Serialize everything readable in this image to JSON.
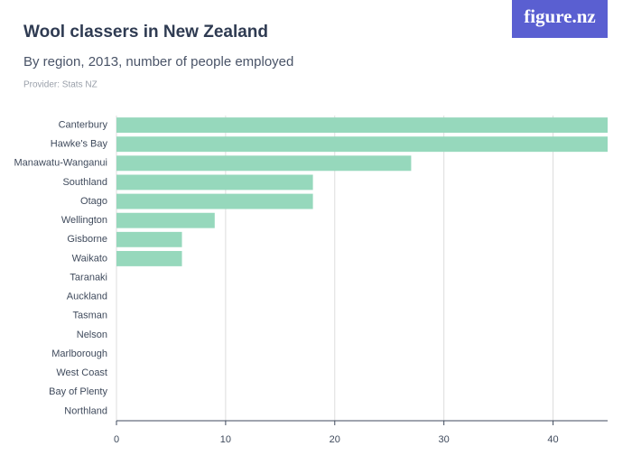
{
  "brand": "figure.nz",
  "chart_data": {
    "type": "bar",
    "orientation": "horizontal",
    "title": "Wool classers in New Zealand",
    "subtitle": "By region, 2013, number of people employed",
    "provider": "Provider: Stats NZ",
    "categories": [
      "Canterbury",
      "Hawke's Bay",
      "Manawatu-Wanganui",
      "Southland",
      "Otago",
      "Wellington",
      "Gisborne",
      "Waikato",
      "Taranaki",
      "Auckland",
      "Tasman",
      "Nelson",
      "Marlborough",
      "West Coast",
      "Bay of Plenty",
      "Northland"
    ],
    "values": [
      45,
      45,
      27,
      18,
      18,
      9,
      6,
      6,
      0,
      0,
      0,
      0,
      0,
      0,
      0,
      0
    ],
    "color": "#96d8bc",
    "xlim": [
      0,
      45
    ],
    "xticks": [
      0,
      10,
      20,
      30,
      40
    ],
    "grid": true
  }
}
